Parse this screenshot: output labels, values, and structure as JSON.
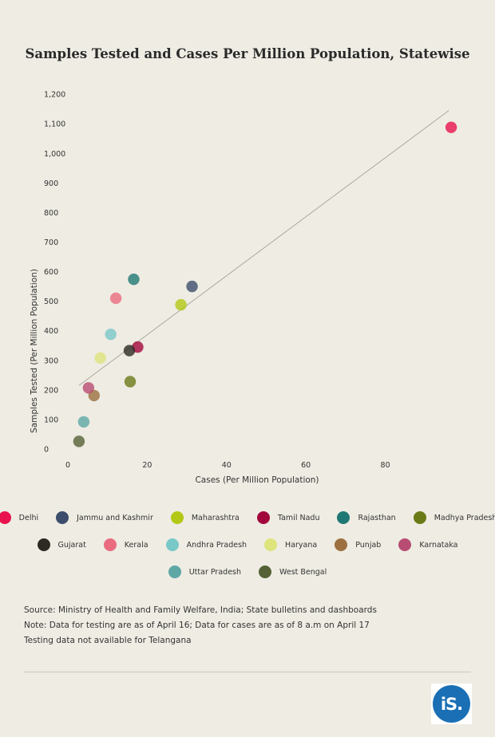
{
  "chart_data": {
    "type": "scatter",
    "title": "Samples Tested and Cases Per Million Population, Statewise",
    "xlabel": "Cases (Per Million Population)",
    "ylabel": "Samples Tested (Per Million Population)",
    "xlim": [
      0,
      100
    ],
    "ylim": [
      0,
      1200
    ],
    "xticks": [
      0,
      20,
      40,
      60,
      80
    ],
    "xtick_labels": [
      "0",
      "20",
      "40",
      "60",
      "80"
    ],
    "yticks": [
      0,
      100,
      200,
      300,
      400,
      500,
      600,
      700,
      800,
      900,
      1000,
      1100,
      1200
    ],
    "ytick_labels": [
      "0",
      "100",
      "200",
      "300",
      "400",
      "500",
      "600",
      "700",
      "800",
      "900",
      "1,000",
      "1,100",
      "1,200"
    ],
    "grid": false,
    "legend_position": "bottom",
    "trendline": {
      "x": [
        2.8,
        96
      ],
      "y": [
        215,
        1145
      ]
    },
    "series": [
      {
        "name": "Delhi",
        "color": "#e8134e",
        "x": 96.6,
        "y": 1088
      },
      {
        "name": "Jammu and Kashmir",
        "color": "#3d4d6c",
        "x": 31.3,
        "y": 550
      },
      {
        "name": "Maharashtra",
        "color": "#b3c814",
        "x": 28.5,
        "y": 488
      },
      {
        "name": "Tamil Nadu",
        "color": "#a2073c",
        "x": 17.6,
        "y": 345
      },
      {
        "name": "Rajasthan",
        "color": "#1f7873",
        "x": 16.6,
        "y": 574
      },
      {
        "name": "Madhya Pradesh",
        "color": "#6a7a16",
        "x": 15.7,
        "y": 228
      },
      {
        "name": "Gujarat",
        "color": "#2c2a22",
        "x": 15.5,
        "y": 333
      },
      {
        "name": "Kerala",
        "color": "#ea6b80",
        "x": 12.1,
        "y": 510
      },
      {
        "name": "Andhra Pradesh",
        "color": "#79c8c8",
        "x": 10.8,
        "y": 388
      },
      {
        "name": "Haryana",
        "color": "#dde47c",
        "x": 8.2,
        "y": 308
      },
      {
        "name": "Punjab",
        "color": "#9c7040",
        "x": 6.6,
        "y": 181
      },
      {
        "name": "Karnataka",
        "color": "#b84d73",
        "x": 5.2,
        "y": 207
      },
      {
        "name": "Uttar Pradesh",
        "color": "#5ea7a5",
        "x": 4.0,
        "y": 92
      },
      {
        "name": "West Bengal",
        "color": "#556235",
        "x": 2.8,
        "y": 26
      }
    ]
  },
  "notes": [
    "Source: Ministry of Health and Family Welfare, India; State bulletins and dashboards",
    "Note: Data for testing are as of April 16; Data for cases are as of 8 a.m on April 17",
    "Testing data not available for Telangana"
  ],
  "logo": {
    "text": "iS."
  }
}
